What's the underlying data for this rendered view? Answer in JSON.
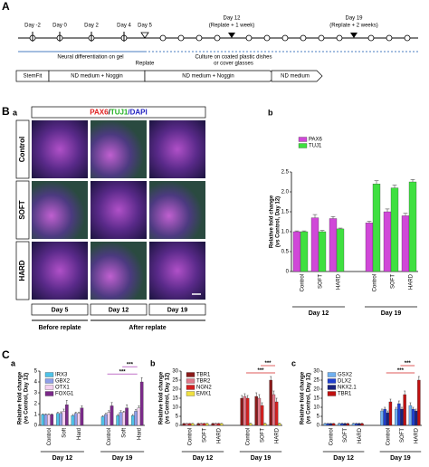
{
  "figure": {
    "panel_a": "A",
    "panel_b": "B",
    "panel_c": "C",
    "timeline": {
      "days": [
        "Day -2",
        "Day 0",
        "Day 2",
        "Day 4",
        "Day 5",
        "Day 12",
        "(Replate + 1 week)",
        "Day 19",
        "(Replate + 2 weeks)"
      ],
      "notes": [
        "Neural differentiation on gel",
        "Replate",
        "Culture on coated plastic dishes",
        "or cover glasses"
      ],
      "media": [
        "StemFit",
        "ND medium + Noggin",
        "ND medium + Noggin",
        "ND medium"
      ]
    },
    "micrographs": {
      "sub": "a",
      "stain": [
        "PAX6",
        "/",
        "TUJ1",
        "/DAPI"
      ],
      "rows": [
        "Control",
        "SOFT",
        "HARD"
      ],
      "columns": [
        "Day 5",
        "Day 12",
        "Day 19"
      ],
      "phases": [
        "Before replate",
        "After replate"
      ]
    }
  },
  "chart_data": [
    {
      "type": "bar",
      "panel": "b",
      "ylabel": [
        "Relative fold change",
        "(vs Control, Day 12)"
      ],
      "categories": [
        "Control",
        "SOFT",
        "HARD",
        "Control",
        "SOFT",
        "HARD"
      ],
      "groups": [
        "Day 12",
        "Day 19"
      ],
      "ylim": [
        0,
        2.5
      ],
      "yticks": [
        0,
        0.5,
        {
          "value": 1,
          "label": "1.0"
        },
        1.5,
        {
          "value": 2,
          "label": "2.0"
        },
        2.5
      ],
      "series": [
        {
          "name": "PAX6",
          "color": "#d048d8",
          "values": [
            1.0,
            1.35,
            1.33,
            1.22,
            1.5,
            1.4
          ],
          "errors": [
            0.02,
            0.08,
            0.05,
            0.04,
            0.07,
            0.06
          ]
        },
        {
          "name": "TUJ1",
          "color": "#3fe040",
          "values": [
            1.0,
            1.0,
            1.07,
            2.2,
            2.1,
            2.25
          ],
          "errors": [
            0.02,
            0.03,
            0.02,
            0.08,
            0.07,
            0.06
          ]
        }
      ],
      "annotations": []
    },
    {
      "type": "bar",
      "panel": "a",
      "ylabel": [
        "Relative fold change",
        "(vs Control, Day 12)"
      ],
      "categories": [
        "Control",
        "Soft",
        "Hard",
        "Control",
        "Soft",
        "Hard"
      ],
      "groups": [
        "Day 12",
        "Day 19"
      ],
      "ylim": [
        0,
        5
      ],
      "yticks": [
        0,
        1,
        2,
        3,
        4,
        5
      ],
      "series": [
        {
          "name": "IRX3",
          "color": "#4fc3e8",
          "values": [
            1.0,
            1.1,
            0.9,
            0.8,
            0.9,
            0.9
          ],
          "errors": [
            0.05,
            0.1,
            0.1,
            0.1,
            0.1,
            0.1
          ]
        },
        {
          "name": "GBX2",
          "color": "#8f9fe8",
          "values": [
            1.0,
            1.1,
            1.1,
            1.0,
            1.2,
            1.3
          ],
          "errors": [
            0.05,
            0.15,
            0.1,
            0.1,
            0.15,
            0.15
          ]
        },
        {
          "name": "OTX1",
          "color": "#f4d0f0",
          "values": [
            1.0,
            1.3,
            1.1,
            1.2,
            1.2,
            1.6
          ],
          "errors": [
            0.05,
            0.2,
            0.1,
            0.15,
            0.1,
            0.2
          ]
        },
        {
          "name": "FOXG1",
          "color": "#7b2a8a",
          "values": [
            1.0,
            1.9,
            1.6,
            1.8,
            1.6,
            4.0
          ],
          "errors": [
            0.05,
            0.4,
            0.2,
            0.3,
            0.3,
            0.4
          ]
        }
      ],
      "annotations": [
        "***",
        "***"
      ],
      "annotation_color": "#9c1fa8"
    },
    {
      "type": "bar",
      "panel": "b",
      "ylabel": [
        "Relative fold change",
        "(vs Control, Day 12)"
      ],
      "categories": [
        "Control",
        "SOFT",
        "HARD",
        "Control",
        "SOFT",
        "HARD"
      ],
      "groups": [
        "Day 12",
        "Day 19"
      ],
      "ylim": [
        0,
        30
      ],
      "yticks": [
        0,
        5,
        10,
        15,
        20,
        25,
        30
      ],
      "series": [
        {
          "name": "TBR1",
          "color": "#8b1a1a",
          "values": [
            1,
            1,
            1,
            15,
            16,
            25
          ],
          "errors": [
            0.1,
            0.2,
            0.2,
            1.5,
            2,
            2
          ]
        },
        {
          "name": "TBR2",
          "color": "#e07a8a",
          "values": [
            1,
            1,
            1,
            16,
            15,
            17
          ],
          "errors": [
            0.1,
            0.2,
            0.2,
            1.5,
            2,
            2
          ]
        },
        {
          "name": "NGN2",
          "color": "#d42020",
          "values": [
            1,
            1,
            1,
            15,
            11,
            13
          ],
          "errors": [
            0.1,
            0.2,
            0.2,
            1.5,
            1.5,
            2
          ]
        },
        {
          "name": "EMX1",
          "color": "#f0e040",
          "values": [
            1,
            1,
            1,
            1,
            1,
            1
          ],
          "errors": [
            0.1,
            0.1,
            0.1,
            0.2,
            0.2,
            0.2
          ]
        }
      ],
      "annotations": [
        "***",
        "***"
      ],
      "annotation_color": "#d42020"
    },
    {
      "type": "bar",
      "panel": "c",
      "ylabel": [
        "Relative fold change",
        "(vs Control, Day 12)"
      ],
      "categories": [
        "Control",
        "SOFT",
        "HARD",
        "Control",
        "SOFT",
        "HARD"
      ],
      "groups": [
        "Day 12",
        "Day 19"
      ],
      "ylim": [
        0,
        30
      ],
      "yticks": [
        0,
        5,
        10,
        15,
        20,
        25,
        30
      ],
      "series": [
        {
          "name": "GSX2",
          "color": "#70b0f0",
          "values": [
            1,
            1,
            1,
            8,
            9,
            11
          ],
          "errors": [
            0.1,
            0.2,
            0.2,
            1,
            1,
            1.5
          ]
        },
        {
          "name": "DLX2",
          "color": "#2040d0",
          "values": [
            1,
            1,
            1,
            9,
            12,
            9
          ],
          "errors": [
            0.1,
            0.2,
            0.2,
            1,
            1.5,
            1
          ]
        },
        {
          "name": "NKX2.1",
          "color": "#1a237e",
          "values": [
            1,
            1,
            1,
            7,
            9,
            8
          ],
          "errors": [
            0.1,
            0.2,
            0.2,
            1,
            1,
            1
          ]
        },
        {
          "name": "TBR1",
          "color": "#c01010",
          "values": [
            1,
            1,
            1,
            13,
            17,
            25
          ],
          "errors": [
            0.1,
            0.2,
            0.2,
            1.5,
            2,
            2
          ]
        }
      ],
      "annotations": [
        "***",
        "***"
      ],
      "annotation_color": "#d42020"
    }
  ]
}
